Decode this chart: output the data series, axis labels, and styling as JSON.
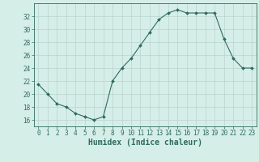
{
  "x": [
    0,
    1,
    2,
    3,
    4,
    5,
    6,
    7,
    8,
    9,
    10,
    11,
    12,
    13,
    14,
    15,
    16,
    17,
    18,
    19,
    20,
    21,
    22,
    23
  ],
  "y": [
    21.5,
    20.0,
    18.5,
    18.0,
    17.0,
    16.5,
    16.0,
    16.5,
    22.0,
    24.0,
    25.5,
    27.5,
    29.5,
    31.5,
    32.5,
    33.0,
    32.5,
    32.5,
    32.5,
    32.5,
    28.5,
    25.5,
    24.0,
    24.0
  ],
  "xlabel": "Humidex (Indice chaleur)",
  "xticks": [
    0,
    1,
    2,
    3,
    4,
    5,
    6,
    7,
    8,
    9,
    10,
    11,
    12,
    13,
    14,
    15,
    16,
    17,
    18,
    19,
    20,
    21,
    22,
    23
  ],
  "yticks": [
    16,
    18,
    20,
    22,
    24,
    26,
    28,
    30,
    32
  ],
  "ylim": [
    15.0,
    34.0
  ],
  "xlim": [
    -0.5,
    23.5
  ],
  "line_color": "#2e6b5e",
  "marker_color": "#2e6b5e",
  "bg_color": "#d6eee8",
  "grid_color": "#b8d4cd",
  "axis_color": "#2e6b5e",
  "tick_fontsize": 5.5,
  "xlabel_fontsize": 7.0,
  "xlabel_fontweight": "bold"
}
